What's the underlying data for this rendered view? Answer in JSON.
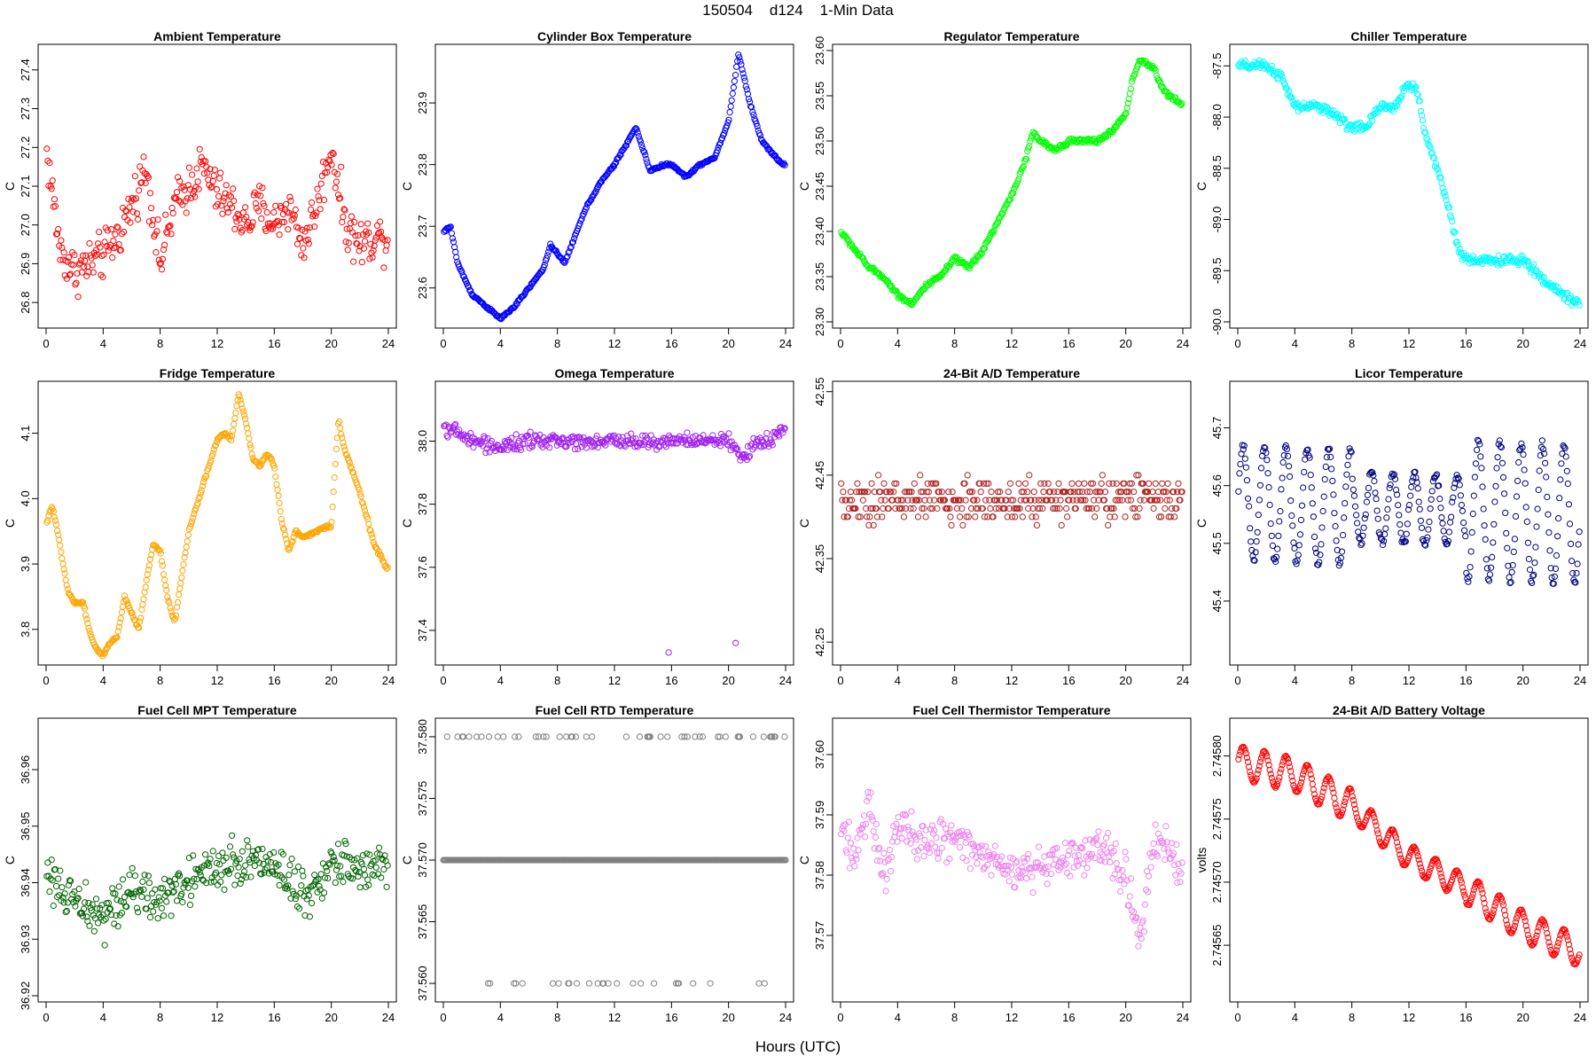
{
  "page": {
    "title": "150504    d124    1-Min Data",
    "x_axis_title": "Hours (UTC)"
  },
  "chart_data": [
    {
      "type": "scatter",
      "title": "Ambient Temperature",
      "ylabel": "C",
      "color": "#ff0000",
      "xlim": [
        0,
        24
      ],
      "ylim": [
        26.75,
        27.45
      ],
      "xticks": [
        0,
        4,
        8,
        12,
        16,
        20,
        24
      ],
      "yticks": [
        26.8,
        26.9,
        27.0,
        27.1,
        27.2,
        27.3,
        27.4
      ],
      "ytick_labels": [
        "26.8",
        "26.9",
        "27.0",
        "27.1",
        "27.2",
        "27.3",
        "27.4"
      ],
      "profile": {
        "x": [
          0,
          1,
          2,
          3,
          4,
          5,
          6,
          7,
          8,
          9,
          10,
          11,
          12,
          13,
          14,
          15,
          16,
          17,
          18,
          19,
          20,
          21,
          22,
          23,
          24
        ],
        "y": [
          27.2,
          26.93,
          26.88,
          26.9,
          26.92,
          26.97,
          27.05,
          27.15,
          26.9,
          27.05,
          27.1,
          27.15,
          27.08,
          27.05,
          27.0,
          27.05,
          27.0,
          27.05,
          26.95,
          27.05,
          27.2,
          27.0,
          26.95,
          26.97,
          26.97
        ]
      },
      "noise": 0.09
    },
    {
      "type": "scatter",
      "title": "Cylinder Box Temperature",
      "ylabel": "C",
      "color": "#0000ff",
      "xlim": [
        0,
        24
      ],
      "ylim": [
        23.545,
        23.985
      ],
      "xticks": [
        0,
        4,
        8,
        12,
        16,
        20,
        24
      ],
      "yticks": [
        23.6,
        23.7,
        23.8,
        23.9
      ],
      "ytick_labels": [
        "23.6",
        "23.7",
        "23.8",
        "23.9"
      ],
      "profile": {
        "x": [
          0,
          0.5,
          1,
          2,
          3,
          4,
          5,
          6,
          7,
          7.5,
          8.5,
          9,
          10,
          11,
          12,
          13,
          13.5,
          14.5,
          15.5,
          16,
          17,
          18,
          19,
          20,
          20.7,
          21.5,
          22.3,
          23,
          23.8
        ],
        "y": [
          23.69,
          23.7,
          23.64,
          23.59,
          23.57,
          23.55,
          23.57,
          23.6,
          23.63,
          23.67,
          23.64,
          23.67,
          23.73,
          23.77,
          23.8,
          23.84,
          23.86,
          23.79,
          23.8,
          23.8,
          23.78,
          23.8,
          23.81,
          23.87,
          23.98,
          23.9,
          23.84,
          23.82,
          23.8
        ]
      },
      "noise": 0.003
    },
    {
      "type": "scatter",
      "title": "Regulator Temperature",
      "ylabel": "C",
      "color": "#00ff00",
      "xlim": [
        0,
        24
      ],
      "ylim": [
        23.3,
        23.6
      ],
      "xticks": [
        0,
        4,
        8,
        12,
        16,
        20,
        24
      ],
      "yticks": [
        23.3,
        23.35,
        23.4,
        23.45,
        23.5,
        23.55,
        23.6
      ],
      "ytick_labels": [
        "23.30",
        "23.35",
        "23.40",
        "23.45",
        "23.50",
        "23.55",
        "23.60"
      ],
      "profile": {
        "x": [
          0,
          1,
          2,
          3,
          4,
          5,
          6,
          7,
          8,
          9,
          10,
          11,
          12,
          13,
          13.5,
          14,
          15,
          16,
          17,
          18,
          19,
          20,
          20.5,
          21,
          22,
          22.5,
          23,
          24
        ],
        "y": [
          23.4,
          23.38,
          23.36,
          23.35,
          23.33,
          23.32,
          23.34,
          23.35,
          23.37,
          23.36,
          23.38,
          23.41,
          23.44,
          23.48,
          23.51,
          23.5,
          23.49,
          23.5,
          23.5,
          23.5,
          23.51,
          23.53,
          23.57,
          23.59,
          23.58,
          23.56,
          23.55,
          23.54
        ]
      },
      "noise": 0.004
    },
    {
      "type": "scatter",
      "title": "Chiller Temperature",
      "ylabel": "C",
      "color": "#00ffff",
      "xlim": [
        0,
        24
      ],
      "ylim": [
        -90.0,
        -87.35
      ],
      "xticks": [
        0,
        4,
        8,
        12,
        16,
        20,
        24
      ],
      "yticks": [
        -90.0,
        -89.5,
        -89.0,
        -88.5,
        -88.0,
        -87.5
      ],
      "ytick_labels": [
        "-90.0",
        "-89.5",
        "-89.0",
        "-88.5",
        "-88.0",
        "-87.5"
      ],
      "profile": {
        "x": [
          0,
          1,
          2,
          3,
          4,
          5,
          6,
          7,
          8,
          9,
          10,
          11,
          11.8,
          12.5,
          13.2,
          14,
          15,
          15.5,
          16,
          17,
          18,
          19,
          20,
          20.8,
          21.5,
          22.5,
          23.5,
          24
        ],
        "y": [
          -87.5,
          -87.5,
          -87.5,
          -87.6,
          -87.9,
          -87.9,
          -87.9,
          -88.0,
          -88.1,
          -88.1,
          -87.9,
          -87.9,
          -87.7,
          -87.7,
          -88.2,
          -88.5,
          -89.0,
          -89.3,
          -89.4,
          -89.4,
          -89.4,
          -89.4,
          -89.4,
          -89.5,
          -89.6,
          -89.7,
          -89.8,
          -89.8
        ]
      },
      "noise": 0.07
    },
    {
      "type": "scatter",
      "title": "Fridge Temperature",
      "ylabel": "C",
      "color": "#ffa500",
      "xlim": [
        0,
        24
      ],
      "ylim": [
        3.755,
        4.17
      ],
      "xticks": [
        0,
        4,
        8,
        12,
        16,
        20,
        24
      ],
      "yticks": [
        3.8,
        3.9,
        4.0,
        4.1
      ],
      "ytick_labels": [
        "3.8",
        "3.9",
        "4.0",
        "4.1"
      ],
      "profile": {
        "x": [
          0,
          0.4,
          0.8,
          1.5,
          2,
          2.6,
          3,
          3.5,
          4,
          4.5,
          5,
          5.5,
          6.5,
          7,
          7.5,
          8,
          8.5,
          9,
          10,
          11,
          12,
          12.5,
          13,
          13.5,
          14,
          14.5,
          15,
          15.5,
          16,
          16.5,
          17,
          17.5,
          18,
          19,
          20,
          20.5,
          21,
          22,
          23,
          24
        ],
        "y": [
          3.96,
          3.99,
          3.95,
          3.86,
          3.84,
          3.84,
          3.8,
          3.77,
          3.76,
          3.78,
          3.79,
          3.85,
          3.8,
          3.87,
          3.93,
          3.92,
          3.85,
          3.81,
          3.95,
          4.02,
          4.09,
          4.1,
          4.09,
          4.16,
          4.12,
          4.06,
          4.05,
          4.07,
          4.05,
          3.97,
          3.92,
          3.95,
          3.94,
          3.95,
          3.96,
          4.12,
          4.07,
          4.01,
          3.93,
          3.89
        ]
      },
      "noise": 0.004
    },
    {
      "type": "scatter",
      "title": "Omega Temperature",
      "ylabel": "C",
      "color": "#a020f0",
      "xlim": [
        0,
        24
      ],
      "ylim": [
        37.31,
        38.17
      ],
      "xticks": [
        0,
        4,
        8,
        12,
        16,
        20,
        24
      ],
      "yticks": [
        37.4,
        37.6,
        37.8,
        38.0
      ],
      "ytick_labels": [
        "37.4",
        "37.6",
        "37.8",
        "38.0"
      ],
      "profile": {
        "x": [
          0,
          2,
          4,
          6,
          8,
          10,
          12,
          14,
          16,
          18,
          20,
          21,
          22,
          23,
          24
        ],
        "y": [
          38.05,
          38.0,
          37.98,
          38.0,
          38.0,
          38.0,
          38.0,
          38.0,
          38.0,
          38.0,
          38.0,
          37.95,
          38.0,
          38.0,
          38.05
        ]
      },
      "noise": 0.035,
      "outliers": [
        [
          15.8,
          37.33
        ],
        [
          20.5,
          37.36
        ]
      ]
    },
    {
      "type": "scatter",
      "title": "24-Bit A/D Temperature",
      "ylabel": "C",
      "color": "#b22222",
      "xlim": [
        0,
        24
      ],
      "ylim": [
        42.23,
        42.555
      ],
      "xticks": [
        0,
        4,
        8,
        12,
        16,
        20,
        24
      ],
      "yticks": [
        42.25,
        42.35,
        42.45,
        42.55
      ],
      "ytick_labels": [
        "42.25",
        "42.35",
        "42.45",
        "42.55"
      ],
      "profile": {
        "x": [
          0,
          24
        ],
        "y": [
          42.42,
          42.42
        ]
      },
      "noise": 0.04,
      "quant": 0.01
    },
    {
      "type": "scatter",
      "title": "Licor Temperature",
      "ylabel": "C",
      "color": "#000080",
      "xlim": [
        0,
        24
      ],
      "ylim": [
        45.3,
        45.77
      ],
      "xticks": [
        0,
        4,
        8,
        12,
        16,
        20,
        24
      ],
      "yticks": [
        45.4,
        45.5,
        45.6,
        45.7
      ],
      "ytick_labels": [
        "45.4",
        "45.5",
        "45.6",
        "45.7"
      ],
      "profile": {
        "x": [
          0,
          24
        ],
        "y": [
          45.57,
          45.55
        ]
      },
      "noise": 0.01,
      "osc": {
        "amp": [
          0.1,
          0.06,
          0.12
        ],
        "period": 1.5
      }
    },
    {
      "type": "scatter",
      "title": "Fuel Cell MPT Temperature",
      "ylabel": "C",
      "color": "#006400",
      "xlim": [
        0,
        24
      ],
      "ylim": [
        36.92,
        36.968
      ],
      "xticks": [
        0,
        4,
        8,
        12,
        16,
        20,
        24
      ],
      "yticks": [
        36.92,
        36.93,
        36.94,
        36.95,
        36.96
      ],
      "ytick_labels": [
        "36.92",
        "36.93",
        "36.94",
        "36.95",
        "36.96"
      ],
      "profile": {
        "x": [
          0,
          2,
          4,
          6,
          8,
          10,
          12,
          14,
          16,
          18,
          20,
          22,
          24
        ],
        "y": [
          36.942,
          36.936,
          36.934,
          36.938,
          36.937,
          36.94,
          36.943,
          36.944,
          36.943,
          36.938,
          36.943,
          36.942,
          36.943
        ]
      },
      "noise": 0.006
    },
    {
      "type": "scatter",
      "title": "Fuel Cell RTD Temperature",
      "ylabel": "C",
      "color": "#808080",
      "xlim": [
        0,
        24
      ],
      "ylim": [
        37.559,
        37.581
      ],
      "xticks": [
        0,
        4,
        8,
        12,
        16,
        20,
        24
      ],
      "yticks": [
        37.56,
        37.565,
        37.57,
        37.575,
        37.58
      ],
      "ytick_labels": [
        "37.560",
        "37.565",
        "37.570",
        "37.575",
        "37.580"
      ],
      "levels": [
        37.56,
        37.57,
        37.58
      ]
    },
    {
      "type": "scatter",
      "title": "Fuel Cell Thermistor Temperature",
      "ylabel": "C",
      "color": "#ee82ee",
      "xlim": [
        0,
        24
      ],
      "ylim": [
        37.56,
        37.605
      ],
      "xticks": [
        0,
        4,
        8,
        12,
        16,
        20,
        24
      ],
      "yticks": [
        37.57,
        37.58,
        37.59,
        37.6
      ],
      "ytick_labels": [
        "37.57",
        "37.58",
        "37.59",
        "37.60"
      ],
      "profile": {
        "x": [
          0,
          1,
          2,
          3,
          4,
          6,
          8,
          10,
          12,
          14,
          16,
          18,
          20,
          21,
          22,
          23,
          24
        ],
        "y": [
          37.588,
          37.582,
          37.592,
          37.58,
          37.588,
          37.585,
          37.586,
          37.583,
          37.58,
          37.582,
          37.583,
          37.585,
          37.58,
          37.57,
          37.585,
          37.584,
          37.58
        ]
      },
      "noise": 0.005
    },
    {
      "type": "scatter",
      "title": "24-Bit A/D Battery Voltage",
      "ylabel": "volts",
      "color": "#ff0000",
      "xlim": [
        0,
        24
      ],
      "ylim": [
        2.74561,
        2.745825
      ],
      "xticks": [
        0,
        4,
        8,
        12,
        16,
        20,
        24
      ],
      "yticks": [
        2.74565,
        2.7457,
        2.74575,
        2.7458
      ],
      "ytick_labels": [
        "2.74565",
        "2.74570",
        "2.74575",
        "2.74580"
      ],
      "profile": {
        "x": [
          0,
          4,
          8,
          12,
          16,
          20,
          24
        ],
        "y": [
          2.745795,
          2.745785,
          2.74576,
          2.74572,
          2.745695,
          2.745665,
          2.745645
        ]
      },
      "noise": 8e-07,
      "osc": {
        "amp": [
          1.3e-05,
          1e-05,
          1.2e-05
        ],
        "period": 1.5
      }
    }
  ]
}
